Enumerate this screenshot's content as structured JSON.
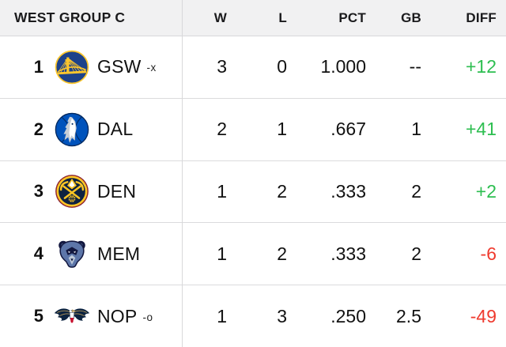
{
  "header": {
    "group_label": "WEST GROUP C",
    "columns": [
      "W",
      "L",
      "PCT",
      "GB",
      "DIFF"
    ]
  },
  "standings": [
    {
      "rank": "1",
      "abbr": "GSW",
      "clinch": "-x",
      "logo_icon": "warriors-logo",
      "w": "3",
      "l": "0",
      "pct": "1.000",
      "gb": "--",
      "diff": "+12"
    },
    {
      "rank": "2",
      "abbr": "DAL",
      "clinch": "",
      "logo_icon": "mavericks-logo",
      "w": "2",
      "l": "1",
      "pct": ".667",
      "gb": "1",
      "diff": "+41"
    },
    {
      "rank": "3",
      "abbr": "DEN",
      "clinch": "",
      "logo_icon": "nuggets-logo",
      "w": "1",
      "l": "2",
      "pct": ".333",
      "gb": "2",
      "diff": "+2"
    },
    {
      "rank": "4",
      "abbr": "MEM",
      "clinch": "",
      "logo_icon": "grizzlies-logo",
      "w": "1",
      "l": "2",
      "pct": ".333",
      "gb": "2",
      "diff": "-6"
    },
    {
      "rank": "5",
      "abbr": "NOP",
      "clinch": "-o",
      "logo_icon": "pelicans-logo",
      "w": "1",
      "l": "3",
      "pct": ".250",
      "gb": "2.5",
      "diff": "-49"
    }
  ],
  "colors": {
    "positive_diff": "#2dbe50",
    "negative_diff": "#ef3a2e",
    "header_background": "#f1f1f2",
    "divider": "#d8d8da",
    "text": "#111111"
  }
}
